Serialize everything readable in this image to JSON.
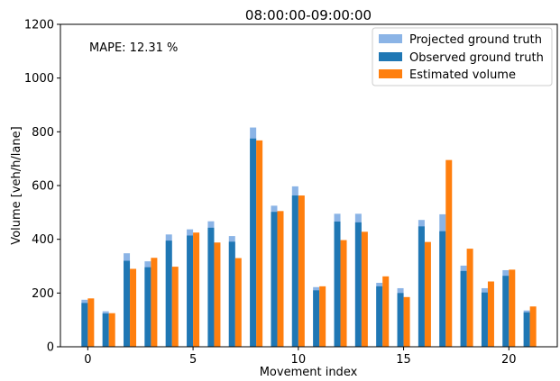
{
  "chart_data": {
    "type": "bar",
    "title": "08:00:00-09:00:00",
    "xlabel": "Movement index",
    "ylabel": "Volume [veh/h/lane]",
    "annotation": "MAPE: 12.31 %",
    "xlim": [
      -1.3,
      22.3
    ],
    "ylim": [
      0,
      1200
    ],
    "xticks": [
      0,
      5,
      10,
      15,
      20
    ],
    "yticks": [
      0,
      200,
      400,
      600,
      800,
      1000,
      1200
    ],
    "grid": false,
    "legend_position": "top-right",
    "x": [
      0,
      1,
      2,
      3,
      4,
      5,
      6,
      7,
      8,
      9,
      10,
      11,
      12,
      13,
      14,
      15,
      16,
      17,
      18,
      19,
      20,
      21
    ],
    "series": [
      {
        "name": "Projected ground truth",
        "color": "#8bb4e6",
        "values": [
          175,
          132,
          348,
          318,
          418,
          437,
          467,
          412,
          816,
          525,
          597,
          222,
          495,
          495,
          238,
          218,
          472,
          493,
          302,
          218,
          285,
          135
        ]
      },
      {
        "name": "Observed ground truth",
        "color": "#1f77b4",
        "values": [
          163,
          124,
          320,
          296,
          395,
          414,
          443,
          391,
          775,
          502,
          563,
          210,
          466,
          463,
          225,
          200,
          448,
          430,
          282,
          202,
          264,
          128
        ]
      },
      {
        "name": "Estimated volume",
        "color": "#ff7f0e",
        "values": [
          180,
          125,
          290,
          331,
          298,
          425,
          388,
          330,
          768,
          505,
          563,
          225,
          397,
          428,
          262,
          185,
          390,
          695,
          365,
          243,
          287,
          150
        ]
      }
    ]
  }
}
